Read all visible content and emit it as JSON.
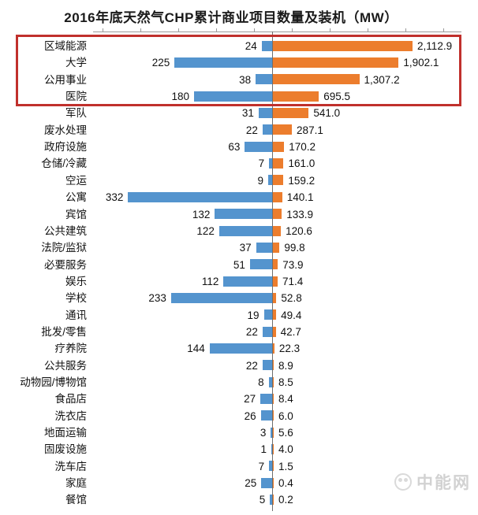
{
  "title": "2016年底天然气CHP累计商业项目数量及装机（MW）",
  "watermark": {
    "text": "中能网",
    "icon": "panda-logo-icon",
    "color": "#d2d2d2"
  },
  "colors": {
    "count_bar": "#5494CE",
    "mw_bar": "#EC7D2D",
    "highlight_box": "#C0302C",
    "axis_line": "#6e6e6e"
  },
  "chart_data": {
    "type": "bar",
    "subtype": "diverging-horizontal",
    "title": "2016年底天然气CHP累计商业项目数量及装机（MW）",
    "xlabel": "",
    "ylabel": "",
    "legend": "none",
    "grid": false,
    "axis": {
      "center_axis": true,
      "top_ticks": true
    },
    "categories": [
      "区域能源",
      "大学",
      "公用事业",
      "医院",
      "军队",
      "废水处理",
      "政府设施",
      "仓储/冷藏",
      "空运",
      "公寓",
      "宾馆",
      "公共建筑",
      "法院/监狱",
      "必要服务",
      "娱乐",
      "学校",
      "通讯",
      "批发/零售",
      "疗养院",
      "公共服务",
      "动物园/博物馆",
      "食品店",
      "洗衣店",
      "地面运输",
      "固废设施",
      "洗车店",
      "家庭",
      "餐馆"
    ],
    "series": [
      {
        "name": "项目数量",
        "direction": "left",
        "color": "#5494CE",
        "values": [
          24,
          225,
          38,
          180,
          31,
          22,
          63,
          7,
          9,
          332,
          132,
          122,
          37,
          51,
          112,
          233,
          19,
          22,
          144,
          22,
          8,
          27,
          26,
          3,
          1,
          7,
          25,
          5
        ]
      },
      {
        "name": "装机(MW)",
        "direction": "right",
        "color": "#EC7D2D",
        "values": [
          2112.9,
          1902.1,
          1307.2,
          695.5,
          541.0,
          287.1,
          170.2,
          161.0,
          159.2,
          140.1,
          133.9,
          120.6,
          99.8,
          73.9,
          71.4,
          52.8,
          49.4,
          42.7,
          22.3,
          8.9,
          8.5,
          8.4,
          6.0,
          5.6,
          4.0,
          1.5,
          0.4,
          0.2
        ]
      }
    ],
    "count_labels": [
      "24",
      "225",
      "38",
      "180",
      "31",
      "22",
      "63",
      "7",
      "9",
      "332",
      "132",
      "122",
      "37",
      "51",
      "112",
      "233",
      "19",
      "22",
      "144",
      "22",
      "8",
      "27",
      "26",
      "3",
      "1",
      "7",
      "25",
      "5"
    ],
    "mw_labels": [
      "2,112.9",
      "1,902.1",
      "1,307.2",
      "695.5",
      "541.0",
      "287.1",
      "170.2",
      "161.0",
      "159.2",
      "140.1",
      "133.9",
      "120.6",
      "99.8",
      "73.9",
      "71.4",
      "52.8",
      "49.4",
      "42.7",
      "22.3",
      "8.9",
      "8.5",
      "8.4",
      "6.0",
      "5.6",
      "4.0",
      "1.5",
      "0.4",
      "0.2"
    ],
    "highlighted_rows": [
      "区域能源",
      "大学",
      "公用事业",
      "医院"
    ],
    "count_axis_max": 620,
    "mw_axis_max": 2500
  }
}
